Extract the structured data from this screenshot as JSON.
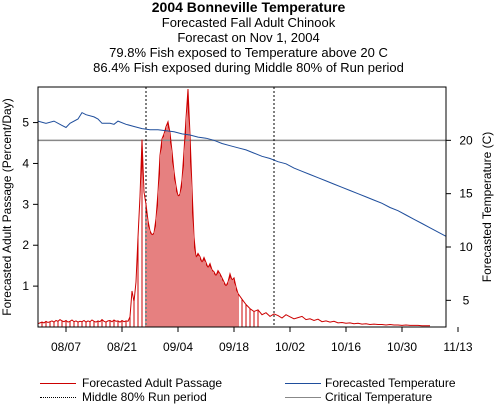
{
  "titles": {
    "title": "2004 Bonneville Temperature",
    "subtitle1": "Forecasted Fall Adult Chinook",
    "subtitle2": "Forecast on Nov  1, 2004",
    "subtitle3": "79.8% Fish exposed to Temperature above 20 C",
    "subtitle4": "86.4% Fish exposed during Middle 80% of Run period"
  },
  "colors": {
    "passage": "#cc0000",
    "temperature": "#1f4e9c",
    "critical": "#888888",
    "middle80": "#000000"
  },
  "legend": {
    "passage": "Forecasted Adult Passage",
    "middle80": "Middle 80% Run period",
    "temperature": "Forecasted Temperature",
    "critical": "Critical Temperature"
  },
  "chart_data": {
    "type": "line",
    "title": "2004 Bonneville Temperature",
    "ylabel": "Forecasted Adult Passage (Percent/Day)",
    "y2label": "Forecasted Temperature (C)",
    "xlim_day": [
      0,
      102
    ],
    "x_ticks": [
      "08/07",
      "08/21",
      "09/04",
      "09/18",
      "10/02",
      "10/16",
      "10/30",
      "11/13"
    ],
    "x_tick_days": [
      7,
      21,
      35,
      49,
      63,
      77,
      91,
      105
    ],
    "ylim": [
      0,
      5.87
    ],
    "y_ticks": [
      "1",
      "2",
      "3",
      "4",
      "5"
    ],
    "y2lim": [
      2.5,
      25.0
    ],
    "y2_ticks": [
      "5",
      "10",
      "15",
      "20"
    ],
    "critical_temperature": 20,
    "middle80_start": "08/27",
    "middle80_end": "09/28",
    "passage_series_name": "Forecasted Adult Passage",
    "passage_days": [
      0,
      0.5,
      1,
      1.5,
      2,
      2.5,
      3,
      3.5,
      4,
      4.5,
      5,
      5.5,
      6,
      6.5,
      7,
      7.5,
      8,
      8.5,
      9,
      9.5,
      10,
      10.5,
      11,
      11.5,
      12,
      12.5,
      13,
      13.5,
      14,
      14.5,
      15,
      15.5,
      16,
      16.5,
      17,
      17.5,
      18,
      18.5,
      19,
      19.5,
      20,
      20.5,
      21,
      21.5,
      22,
      22.5,
      23,
      23.5,
      24,
      24.5,
      25,
      25.5,
      26,
      26.5,
      27,
      27.5,
      28,
      28.5,
      29,
      29.5,
      30,
      30.5,
      31,
      31.5,
      32,
      32.5,
      33,
      33.5,
      34,
      34.5,
      35,
      35.5,
      36,
      36.5,
      37,
      37.5,
      38,
      38.5,
      39,
      39.5,
      40,
      40.5,
      41,
      41.5,
      42,
      42.5,
      43,
      43.5,
      44,
      44.5,
      45,
      45.5,
      46,
      46.5,
      47,
      47.5,
      48,
      48.5,
      49,
      49.5,
      50,
      51,
      52,
      53,
      54,
      55,
      56,
      57,
      58,
      59,
      60,
      61,
      62,
      63,
      64,
      65,
      66,
      67,
      68,
      69,
      70,
      71,
      72,
      73,
      74,
      75,
      76,
      77,
      78,
      79,
      80,
      81,
      82,
      83,
      84,
      85,
      86,
      87,
      88,
      89,
      90,
      91,
      92,
      93,
      94,
      95,
      96,
      97,
      98
    ],
    "passage_values": [
      0.08,
      0.1,
      0.12,
      0.1,
      0.14,
      0.11,
      0.13,
      0.15,
      0.12,
      0.16,
      0.14,
      0.18,
      0.15,
      0.13,
      0.16,
      0.12,
      0.14,
      0.17,
      0.13,
      0.15,
      0.12,
      0.14,
      0.13,
      0.16,
      0.12,
      0.15,
      0.13,
      0.17,
      0.14,
      0.12,
      0.15,
      0.13,
      0.18,
      0.14,
      0.12,
      0.15,
      0.16,
      0.13,
      0.17,
      0.14,
      0.15,
      0.12,
      0.16,
      0.13,
      0.15,
      0.14,
      0.25,
      0.88,
      0.62,
      1.1,
      2.2,
      3.2,
      4.58,
      3.3,
      3.0,
      2.6,
      2.35,
      2.25,
      2.3,
      2.65,
      3.3,
      4.2,
      4.6,
      4.72,
      4.9,
      5.02,
      4.75,
      4.3,
      3.8,
      3.45,
      3.2,
      3.25,
      3.6,
      4.3,
      5.1,
      5.82,
      4.7,
      3.4,
      2.2,
      1.7,
      1.8,
      1.72,
      1.58,
      1.7,
      1.58,
      1.45,
      1.55,
      1.4,
      1.35,
      1.25,
      1.38,
      1.3,
      1.2,
      1.1,
      1.0,
      1.1,
      1.3,
      1.15,
      1.2,
      0.98,
      0.82,
      0.68,
      0.55,
      0.45,
      0.38,
      0.42,
      0.3,
      0.35,
      0.26,
      0.32,
      0.28,
      0.22,
      0.3,
      0.25,
      0.2,
      0.23,
      0.26,
      0.18,
      0.2,
      0.16,
      0.19,
      0.13,
      0.15,
      0.12,
      0.14,
      0.1,
      0.11,
      0.09,
      0.1,
      0.08,
      0.09,
      0.07,
      0.08,
      0.06,
      0.07,
      0.06,
      0.06,
      0.05,
      0.06,
      0.05,
      0.05,
      0.04,
      0.05,
      0.04,
      0.04,
      0.04,
      0.03,
      0.03,
      0.03,
      0.03,
      0.03,
      0.02,
      0.02
    ],
    "temperature_series_name": "Forecasted Temperature",
    "temperature_days": [
      0,
      2,
      4,
      6,
      7,
      8,
      10,
      11,
      12,
      14,
      15,
      16,
      18,
      19,
      20,
      22,
      24,
      26,
      28,
      30,
      32,
      34,
      36,
      38,
      40,
      42,
      44,
      46,
      48,
      50,
      52,
      54,
      56,
      58,
      60,
      62,
      64,
      66,
      68,
      70,
      72,
      74,
      76,
      78,
      80,
      82,
      84,
      86,
      88,
      90,
      92,
      94,
      96,
      98,
      100,
      102
    ],
    "temperature_values": [
      21.8,
      21.6,
      21.8,
      21.4,
      21.2,
      21.6,
      22.0,
      22.6,
      22.4,
      22.2,
      22.0,
      21.6,
      21.6,
      21.5,
      21.8,
      21.5,
      21.3,
      21.1,
      21.0,
      21.0,
      20.9,
      20.8,
      20.6,
      20.5,
      20.3,
      20.2,
      20.0,
      19.7,
      19.5,
      19.3,
      19.1,
      18.8,
      18.5,
      18.3,
      18.0,
      17.8,
      17.4,
      17.1,
      16.8,
      16.5,
      16.2,
      15.9,
      15.6,
      15.3,
      15.0,
      14.7,
      14.4,
      14.1,
      13.7,
      13.4,
      13.0,
      12.6,
      12.2,
      11.8,
      11.4,
      11.0
    ]
  }
}
